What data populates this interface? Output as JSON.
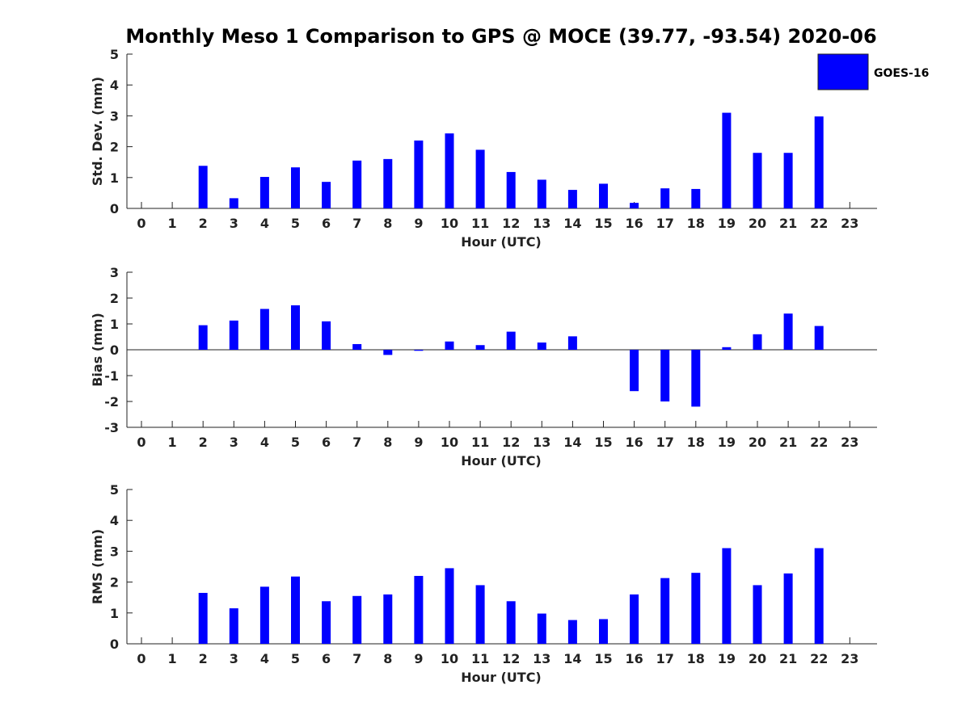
{
  "chart_data": {
    "title": "Monthly Meso 1 Comparison to GPS @ MOCE (39.77, -93.54) 2020-06",
    "type": "bar",
    "legend": {
      "label": "GOES-16",
      "color": "#0000ff",
      "placement": "top-right"
    },
    "categories": [
      "0",
      "1",
      "2",
      "3",
      "4",
      "5",
      "6",
      "7",
      "8",
      "9",
      "10",
      "11",
      "12",
      "13",
      "14",
      "15",
      "16",
      "17",
      "18",
      "19",
      "20",
      "21",
      "22",
      "23"
    ],
    "subplots": [
      {
        "name": "std-dev",
        "ylabel": "Std. Dev. (mm)",
        "xlabel": "Hour (UTC)",
        "ylim": [
          0,
          5
        ],
        "yticks": [
          "0",
          "1",
          "2",
          "3",
          "4",
          "5"
        ],
        "values": [
          null,
          null,
          1.38,
          0.33,
          1.02,
          1.33,
          0.86,
          1.55,
          1.6,
          2.2,
          2.43,
          1.9,
          1.18,
          0.93,
          0.6,
          0.8,
          0.18,
          0.65,
          0.63,
          3.1,
          1.8,
          1.8,
          2.98,
          null
        ]
      },
      {
        "name": "bias",
        "ylabel": "Bias (mm)",
        "xlabel": "Hour (UTC)",
        "ylim": [
          -3,
          3
        ],
        "yticks": [
          "-3",
          "-2",
          "-1",
          "0",
          "1",
          "2",
          "3"
        ],
        "zero_line": true,
        "values": [
          null,
          null,
          0.95,
          1.13,
          1.58,
          1.72,
          1.1,
          0.22,
          -0.2,
          -0.04,
          0.32,
          0.18,
          0.7,
          0.28,
          0.52,
          null,
          -1.6,
          -2.0,
          -2.2,
          0.1,
          0.6,
          1.4,
          0.92,
          null
        ]
      },
      {
        "name": "rms",
        "ylabel": "RMS (mm)",
        "xlabel": "Hour (UTC)",
        "ylim": [
          0,
          5
        ],
        "yticks": [
          "0",
          "1",
          "2",
          "3",
          "4",
          "5"
        ],
        "values": [
          null,
          null,
          1.65,
          1.15,
          1.85,
          2.18,
          1.38,
          1.55,
          1.6,
          2.2,
          2.45,
          1.9,
          1.38,
          0.98,
          0.77,
          0.8,
          1.6,
          2.13,
          2.3,
          3.1,
          1.9,
          2.28,
          3.1,
          null
        ]
      }
    ]
  }
}
